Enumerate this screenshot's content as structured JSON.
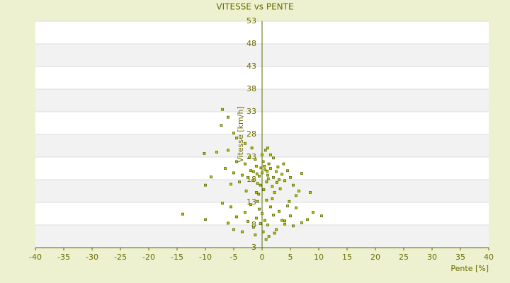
{
  "chart_data": {
    "type": "scatter",
    "title": "VITESSE vs PENTE",
    "x_label": "Pente [%]",
    "y_label": "Vitesse [km/h]",
    "x": [
      0,
      0.5,
      -0.5,
      1,
      1.5,
      -1,
      2,
      -1.5,
      0.2,
      0.8,
      -0.3,
      1.2,
      2.5,
      3,
      -2,
      -2.5,
      -1.2,
      0,
      0.6,
      -0.8,
      1.8,
      2.8,
      3.5,
      4,
      4.5,
      5,
      -3,
      -3.5,
      -2.2,
      1,
      0.3,
      -0.6,
      2.2,
      3.2,
      5.5,
      6,
      7,
      8.5,
      6.5,
      -4,
      -5,
      -5.5,
      -4.5,
      -6,
      -6.5,
      -8,
      -10.2,
      -9,
      -10,
      -5,
      -4.5,
      -7,
      -6,
      -7.2,
      -3,
      0.8,
      1.5,
      2,
      -1.8,
      3.8,
      4.8,
      -2.8,
      -1,
      0.4,
      1.1,
      -0.2,
      2.6,
      -1.6,
      0.9,
      -0.9,
      0,
      0.5,
      -0.5,
      1,
      1.5,
      -1,
      2,
      -1.5,
      0.2,
      2.5,
      3,
      -2,
      -2.5,
      1.2,
      -0.8,
      3.5,
      4,
      4.5,
      5,
      5.5,
      6,
      7,
      -3,
      -3.5,
      -4.5,
      -5,
      -5.5,
      -6,
      -7,
      -10,
      -14,
      8,
      9,
      10.5,
      4,
      2.2,
      -1.2,
      0.7,
      1.8,
      -0.3
    ],
    "values": [
      19.5,
      20.2,
      18.8,
      19,
      20.5,
      21,
      18.5,
      19.8,
      22,
      17.5,
      16.8,
      21.5,
      19.8,
      18,
      20,
      18.5,
      22.5,
      23.5,
      24.5,
      17.2,
      16.5,
      20.8,
      19.2,
      17.8,
      20,
      18.5,
      21.5,
      19,
      23,
      25,
      15.8,
      14.8,
      15.2,
      16,
      16.8,
      14.5,
      19.4,
      15.2,
      15.5,
      17.5,
      19.5,
      17,
      22,
      24.5,
      20.5,
      24.1,
      23.8,
      18.6,
      16.8,
      28.3,
      27.2,
      33.5,
      31.8,
      30,
      26,
      13.5,
      23.5,
      22.8,
      25,
      21.5,
      13.2,
      15.5,
      15.2,
      21,
      18.2,
      20.6,
      17.4,
      17.8,
      19.9,
      19.3,
      10.5,
      9,
      11.5,
      8,
      12,
      9.5,
      10.2,
      7.5,
      6.5,
      7,
      11,
      12.5,
      8.8,
      5.5,
      13.2,
      9,
      8.2,
      12.2,
      10,
      7.8,
      11.8,
      8.5,
      10.8,
      6.5,
      9.8,
      7,
      12,
      8.4,
      12.8,
      9.2,
      10.4,
      9.2,
      10.8,
      10,
      8.9,
      6.2,
      5.8,
      4.8,
      13.8,
      8.3
    ],
    "color": "#c8c800",
    "edge_color": "#556b00",
    "xlim": [
      -40,
      40
    ],
    "xticks": [
      -40,
      -35,
      -30,
      -25,
      -20,
      -15,
      -10,
      -5,
      0,
      5,
      10,
      15,
      20,
      25,
      30,
      35,
      40
    ],
    "ylim": [
      3,
      53
    ],
    "yticks": [
      3,
      8,
      13,
      18,
      23,
      28,
      33,
      38,
      43,
      48,
      53
    ],
    "grid": true
  }
}
